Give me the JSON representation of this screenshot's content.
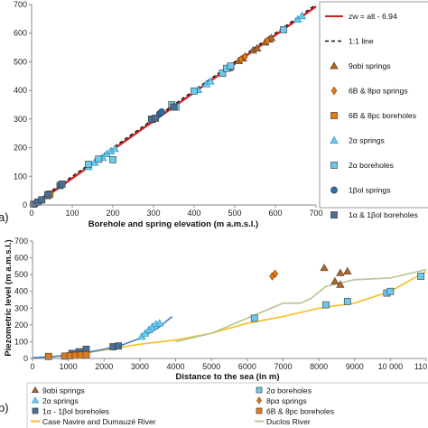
{
  "chart_data": [
    {
      "panel": "a)",
      "type": "scatter",
      "xlabel": "Borehole and spring elevation (m a.m.s.l.)",
      "ylabel": "",
      "xlim": [
        0,
        700
      ],
      "ylim": [
        0,
        700
      ],
      "x_ticks": [
        "0",
        "100",
        "200",
        "300",
        "400",
        "500",
        "600",
        "700"
      ],
      "y_ticks": [
        "0",
        "100",
        "200",
        "300",
        "400",
        "500",
        "600",
        "700"
      ],
      "grid": false,
      "legend_position": "right",
      "lines": [
        {
          "name": "zw = alt - 6.94",
          "color": "#cc1f1f",
          "style": "solid",
          "x": [
            0,
            700
          ],
          "y": [
            -6.94,
            693.06
          ]
        },
        {
          "name": "1:1 line",
          "color": "#111111",
          "style": "dashed",
          "x": [
            0,
            700
          ],
          "y": [
            0,
            700
          ]
        }
      ],
      "series": [
        {
          "name": "9αbi springs",
          "marker": "triangle",
          "color": "#b5651d",
          "points": [
            [
              485,
              478
            ],
            [
              510,
              503
            ],
            [
              520,
              512
            ],
            [
              545,
              540
            ],
            [
              555,
              547
            ],
            [
              575,
              568
            ],
            [
              585,
              578
            ],
            [
              590,
              583
            ]
          ]
        },
        {
          "name": "6B & 8pα springs",
          "marker": "diamond",
          "color": "#e07b1a",
          "points": [
            [
              515,
              508
            ],
            [
              525,
              518
            ],
            [
              580,
              573
            ]
          ]
        },
        {
          "name": "6B & 8pc boreholes",
          "marker": "square",
          "color": "#e07b1a",
          "points": [
            [
              40,
              33
            ],
            [
              45,
              38
            ],
            [
              490,
              483
            ]
          ]
        },
        {
          "name": "2α springs",
          "marker": "triangle",
          "color": "#6cc9ec",
          "points": [
            [
              140,
              133
            ],
            [
              155,
              148
            ],
            [
              175,
              165
            ],
            [
              185,
              178
            ],
            [
              195,
              188
            ],
            [
              205,
              196
            ],
            [
              410,
              402
            ],
            [
              430,
              422
            ],
            [
              440,
              432
            ],
            [
              655,
              648
            ],
            [
              665,
              660
            ]
          ]
        },
        {
          "name": "2α boreholes",
          "marker": "square",
          "color": "#6cc9ec",
          "points": [
            [
              140,
              142
            ],
            [
              165,
              160
            ],
            [
              200,
              158
            ],
            [
              345,
              350
            ],
            [
              355,
              342
            ],
            [
              400,
              398
            ],
            [
              470,
              460
            ],
            [
              480,
              477
            ],
            [
              490,
              485
            ],
            [
              620,
              612
            ]
          ]
        },
        {
          "name": "1βol springs",
          "marker": "circle",
          "color": "#2e6da4",
          "points": [
            [
              12,
              6
            ],
            [
              22,
              15
            ],
            [
              300,
              298
            ],
            [
              315,
              318
            ],
            [
              320,
              325
            ]
          ]
        },
        {
          "name": "1α & 1βol boreholes",
          "marker": "square",
          "color": "#4a6d94",
          "points": [
            [
              5,
              3
            ],
            [
              15,
              10
            ],
            [
              25,
              18
            ],
            [
              40,
              36
            ],
            [
              70,
              68
            ],
            [
              75,
              73
            ],
            [
              295,
              300
            ],
            [
              305,
              303
            ],
            [
              350,
              342
            ]
          ]
        }
      ]
    },
    {
      "panel": "b)",
      "type": "scatter",
      "xlabel": "Distance to the sea (in m)",
      "ylabel": "Piezometric level (m a.m.s.l.)",
      "xlim": [
        0,
        11000
      ],
      "ylim": [
        0,
        700
      ],
      "x_ticks": [
        "0",
        "1000",
        "2000",
        "3000",
        "4000",
        "5000",
        "6000",
        "7000",
        "8000",
        "9000",
        "10 000",
        "110"
      ],
      "y_ticks": [
        "0",
        "100",
        "200",
        "300",
        "400",
        "500",
        "600",
        "700"
      ],
      "grid": false,
      "legend_position": "bottom",
      "series": [
        {
          "name": "9αbi springs",
          "marker": "triangle",
          "color": "#b5651d",
          "points": [
            [
              8150,
              540
            ],
            [
              8450,
              460
            ],
            [
              8600,
              510
            ],
            [
              8800,
              520
            ],
            [
              8600,
              440
            ]
          ]
        },
        {
          "name": "2α springs",
          "marker": "triangle",
          "color": "#6cc9ec",
          "points": [
            [
              3050,
              130
            ],
            [
              3150,
              150
            ],
            [
              3250,
              170
            ],
            [
              3350,
              190
            ],
            [
              3450,
              205
            ],
            [
              3550,
              210
            ]
          ]
        },
        {
          "name": "1α - 1βol boreholes",
          "marker": "square",
          "color": "#4a6d94",
          "points": [
            [
              1100,
              30
            ],
            [
              1300,
              40
            ],
            [
              1500,
              55
            ],
            [
              2250,
              70
            ],
            [
              2400,
              75
            ]
          ]
        },
        {
          "name": "2α boreholes",
          "marker": "square",
          "color": "#6cc9ec",
          "points": [
            [
              6200,
              240
            ],
            [
              8200,
              320
            ],
            [
              8800,
              340
            ],
            [
              9900,
              390
            ],
            [
              10000,
              400
            ],
            [
              10850,
              490
            ]
          ]
        },
        {
          "name": "8pα springs",
          "marker": "diamond",
          "color": "#e07b1a",
          "points": [
            [
              6700,
              490
            ],
            [
              6780,
              505
            ]
          ]
        },
        {
          "name": "6B & 8pc boreholes",
          "marker": "square",
          "color": "#e07b1a",
          "points": [
            [
              450,
              12
            ],
            [
              900,
              14
            ],
            [
              1050,
              16
            ],
            [
              1200,
              18
            ],
            [
              1350,
              20
            ],
            [
              1500,
              22
            ]
          ]
        }
      ],
      "lines": [
        {
          "name": "Case Navire and Dumauzé River",
          "color": "#f5c02c",
          "x": [
            0,
            1000,
            2000,
            3000,
            4000,
            5000,
            6000,
            7000,
            8000,
            9000,
            10000,
            11000
          ],
          "y": [
            0,
            18,
            50,
            85,
            110,
            150,
            210,
            250,
            300,
            330,
            400,
            520
          ]
        },
        {
          "name": "Duclos River",
          "color": "#b7c79b",
          "x": [
            4000,
            5000,
            6000,
            7000,
            7500,
            7800,
            8200,
            9000,
            10000,
            11000
          ],
          "y": [
            100,
            150,
            240,
            330,
            330,
            360,
            430,
            470,
            480,
            530
          ]
        },
        {
          "name": "",
          "color": "#4a86c5",
          "x": [
            0,
            500,
            1000,
            1500,
            2000,
            2500,
            3000,
            3500,
            3900
          ],
          "y": [
            5,
            10,
            20,
            35,
            55,
            80,
            120,
            180,
            250
          ]
        }
      ]
    }
  ]
}
